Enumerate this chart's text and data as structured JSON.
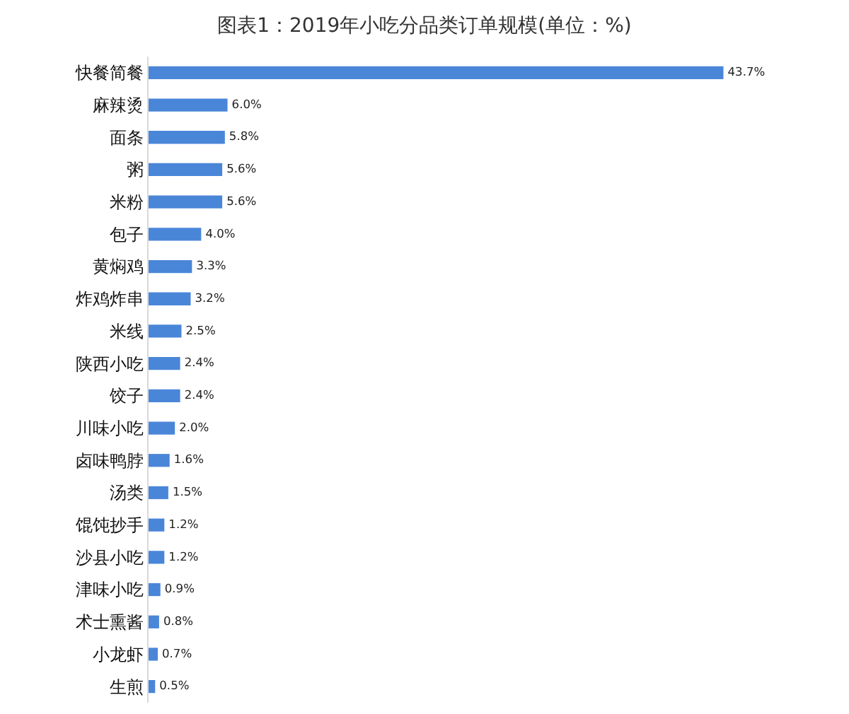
{
  "chart_data": {
    "type": "bar",
    "orientation": "horizontal",
    "title": "图表1：2019年小吃分品类订单规模(单位：%)",
    "categories": [
      "快餐简餐",
      "麻辣烫",
      "面条",
      "粥",
      "米粉",
      "包子",
      "黄焖鸡",
      "炸鸡炸串",
      "米线",
      "陕西小吃",
      "饺子",
      "川味小吃",
      "卤味鸭脖",
      "汤类",
      "馄饨抄手",
      "沙县小吃",
      "津味小吃",
      "术士熏酱",
      "小龙虾",
      "生煎"
    ],
    "values": [
      43.7,
      6.0,
      5.8,
      5.6,
      5.6,
      4.0,
      3.3,
      3.2,
      2.5,
      2.4,
      2.4,
      2.0,
      1.6,
      1.5,
      1.2,
      1.2,
      0.9,
      0.8,
      0.7,
      0.5
    ],
    "value_labels": [
      "43.7%",
      "6.0%",
      "5.8%",
      "5.6%",
      "5.6%",
      "4.0%",
      "3.3%",
      "3.2%",
      "2.5%",
      "2.4%",
      "2.4%",
      "2.0%",
      "1.6%",
      "1.5%",
      "1.2%",
      "1.2%",
      "0.9%",
      "0.8%",
      "0.7%",
      "0.5%"
    ],
    "color": "#4a86d8",
    "grid": false,
    "legend": false,
    "tick_labels": "y"
  }
}
